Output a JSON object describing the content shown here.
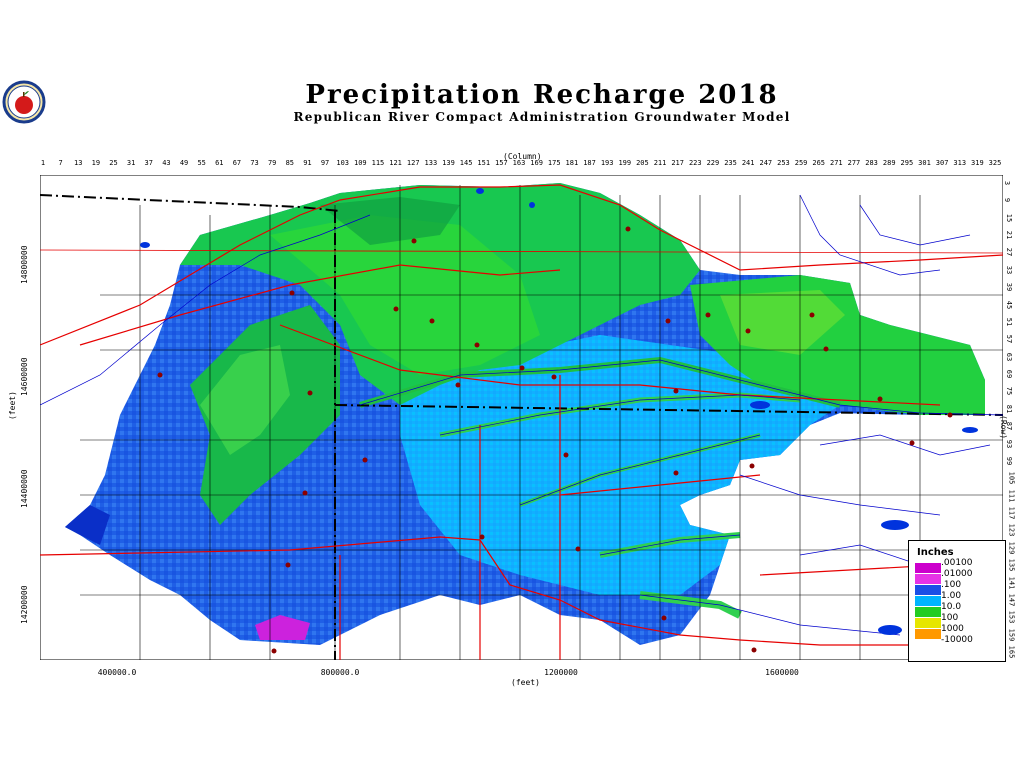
{
  "title": "Precipitation Recharge 2018",
  "subtitle": "Republican River Compact Administration Groundwater Model",
  "axes": {
    "column_label": "(Column)",
    "row_label": "(Row)",
    "x_unit_label": "(feet)",
    "y_unit_label": "(feet)",
    "column_ticks": [
      "1",
      "7",
      "13",
      "19",
      "25",
      "31",
      "37",
      "43",
      "49",
      "55",
      "61",
      "67",
      "73",
      "79",
      "85",
      "91",
      "97",
      "103",
      "109",
      "115",
      "121",
      "127",
      "133",
      "139",
      "145",
      "151",
      "157",
      "163",
      "169",
      "175",
      "181",
      "187",
      "193",
      "199",
      "205",
      "211",
      "217",
      "223",
      "229",
      "235",
      "241",
      "247",
      "253",
      "259",
      "265",
      "271",
      "277",
      "283",
      "289",
      "295",
      "301",
      "307",
      "313",
      "319",
      "325"
    ],
    "row_ticks": [
      "3",
      "9",
      "15",
      "21",
      "27",
      "33",
      "39",
      "45",
      "51",
      "57",
      "63",
      "69",
      "75",
      "81",
      "87",
      "93",
      "99",
      "105",
      "111",
      "117",
      "123",
      "129",
      "135",
      "141",
      "147",
      "153",
      "159",
      "165"
    ],
    "x_ticks": [
      "400000.0",
      "800000.0",
      "1200000",
      "1600000"
    ],
    "y_ticks": [
      "14800000",
      "14600000",
      "14400000",
      "14200000"
    ]
  },
  "legend": {
    "title": "Inches",
    "items": [
      {
        "label": ".00100",
        "color": "#cc00cc"
      },
      {
        "label": ".01000",
        "color": "#e633e6"
      },
      {
        "label": ".100",
        "color": "#1a4fe6"
      },
      {
        "label": "1.00",
        "color": "#00b4ff"
      },
      {
        "label": "10.0",
        "color": "#22cc22"
      },
      {
        "label": "100",
        "color": "#e6e600"
      },
      {
        "label": "1000",
        "color": "#ff9900"
      },
      {
        "label": "-10000",
        "color": "#ffffff"
      }
    ]
  },
  "colors": {
    "river": "#0000cc",
    "highway": "#e60000",
    "county_line": "#000000",
    "state_line": "#000000"
  }
}
